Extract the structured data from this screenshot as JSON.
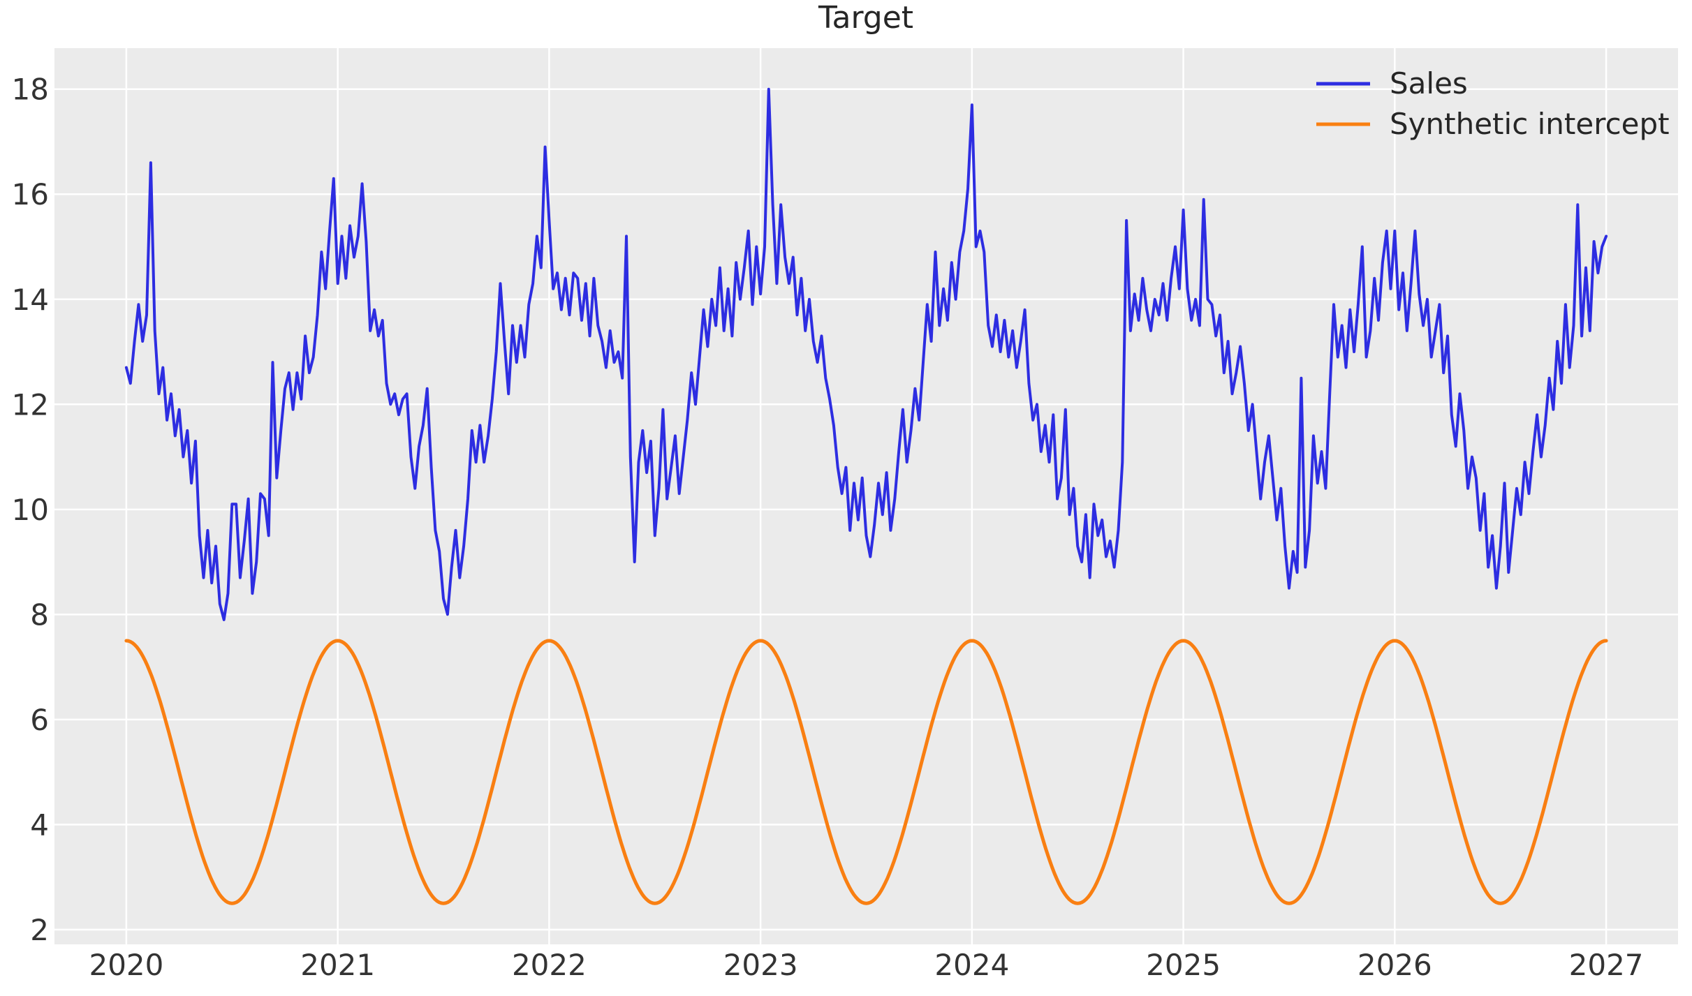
{
  "figure": {
    "title": "Target",
    "background_color": "#ffffff",
    "panel_color": "#ebebeb",
    "grid_color": "#ffffff",
    "tick_color": "#333333",
    "title_color": "#262626"
  },
  "legend": {
    "position": "upper right",
    "frame": false
  },
  "chart_data": {
    "type": "line",
    "title": "Target",
    "xlabel": "",
    "ylabel": "",
    "grid": true,
    "legend_position": "upper right",
    "xlim": [
      2019.66,
      2027.34
    ],
    "ylim": [
      1.72,
      18.78
    ],
    "x_ticks": [
      2020,
      2021,
      2022,
      2023,
      2024,
      2025,
      2026,
      2027
    ],
    "y_ticks": [
      2,
      4,
      6,
      8,
      10,
      12,
      14,
      16,
      18
    ],
    "series": [
      {
        "name": "Sales",
        "color": "#2d2de1",
        "line_width": 4,
        "sampling": "weekly",
        "x_start": 2020.0,
        "x_step": 0.019230769,
        "values": [
          12.7,
          12.4,
          13.2,
          13.9,
          13.2,
          13.7,
          16.6,
          13.4,
          12.2,
          12.7,
          11.7,
          12.2,
          11.4,
          11.9,
          11.0,
          11.5,
          10.5,
          11.3,
          9.5,
          8.7,
          9.6,
          8.6,
          9.3,
          8.2,
          7.9,
          8.4,
          10.1,
          10.1,
          8.7,
          9.4,
          10.2,
          8.4,
          9.0,
          10.3,
          10.2,
          9.5,
          12.8,
          10.6,
          11.5,
          12.3,
          12.6,
          11.9,
          12.6,
          12.1,
          13.3,
          12.6,
          12.9,
          13.7,
          14.9,
          14.2,
          15.3,
          16.3,
          14.3,
          15.2,
          14.4,
          15.4,
          14.8,
          15.2,
          16.2,
          15.1,
          13.4,
          13.8,
          13.3,
          13.6,
          12.4,
          12.0,
          12.2,
          11.8,
          12.1,
          12.2,
          11.0,
          10.4,
          11.2,
          11.6,
          12.3,
          10.8,
          9.6,
          9.2,
          8.3,
          8.0,
          8.9,
          9.6,
          8.7,
          9.3,
          10.2,
          11.5,
          10.9,
          11.6,
          10.9,
          11.4,
          12.1,
          13.0,
          14.3,
          13.2,
          12.2,
          13.5,
          12.8,
          13.5,
          12.9,
          13.9,
          14.3,
          15.2,
          14.6,
          16.9,
          15.5,
          14.2,
          14.5,
          13.8,
          14.4,
          13.7,
          14.5,
          14.4,
          13.6,
          14.3,
          13.3,
          14.4,
          13.5,
          13.2,
          12.7,
          13.4,
          12.8,
          13.0,
          12.5,
          15.2,
          11.0,
          9.0,
          10.9,
          11.5,
          10.7,
          11.3,
          9.5,
          10.4,
          11.9,
          10.2,
          10.8,
          11.4,
          10.3,
          11.0,
          11.7,
          12.6,
          12.0,
          12.9,
          13.8,
          13.1,
          14.0,
          13.5,
          14.6,
          13.4,
          14.2,
          13.3,
          14.7,
          14.0,
          14.6,
          15.3,
          13.9,
          15.0,
          14.1,
          15.0,
          18.0,
          15.8,
          14.3,
          15.8,
          14.8,
          14.3,
          14.8,
          13.7,
          14.4,
          13.4,
          14.0,
          13.2,
          12.8,
          13.3,
          12.5,
          12.1,
          11.6,
          10.8,
          10.3,
          10.8,
          9.6,
          10.5,
          9.8,
          10.6,
          9.5,
          9.1,
          9.7,
          10.5,
          9.9,
          10.7,
          9.6,
          10.2,
          11.1,
          11.9,
          10.9,
          11.5,
          12.3,
          11.7,
          12.8,
          13.9,
          13.2,
          14.9,
          13.5,
          14.2,
          13.6,
          14.7,
          14.0,
          14.9,
          15.3,
          16.1,
          17.7,
          15.0,
          15.3,
          14.9,
          13.5,
          13.1,
          13.7,
          13.0,
          13.6,
          12.9,
          13.4,
          12.7,
          13.2,
          13.8,
          12.4,
          11.7,
          12.0,
          11.1,
          11.6,
          10.9,
          11.8,
          10.2,
          10.6,
          11.9,
          9.9,
          10.4,
          9.3,
          9.0,
          9.9,
          8.7,
          10.1,
          9.5,
          9.8,
          9.1,
          9.4,
          8.9,
          9.6,
          10.9,
          15.5,
          13.4,
          14.1,
          13.6,
          14.4,
          13.8,
          13.4,
          14.0,
          13.7,
          14.3,
          13.6,
          14.4,
          15.0,
          14.2,
          15.7,
          14.2,
          13.6,
          14.0,
          13.5,
          15.9,
          14.0,
          13.9,
          13.3,
          13.7,
          12.6,
          13.2,
          12.2,
          12.6,
          13.1,
          12.4,
          11.5,
          12.0,
          11.1,
          10.2,
          10.9,
          11.4,
          10.6,
          9.8,
          10.4,
          9.3,
          8.5,
          9.2,
          8.8,
          12.5,
          8.9,
          9.6,
          11.4,
          10.5,
          11.1,
          10.4,
          12.2,
          13.9,
          12.9,
          13.5,
          12.7,
          13.8,
          13.0,
          13.9,
          15.0,
          12.9,
          13.4,
          14.4,
          13.6,
          14.7,
          15.3,
          14.2,
          15.3,
          13.8,
          14.5,
          13.4,
          14.3,
          15.3,
          14.1,
          13.5,
          14.0,
          12.9,
          13.4,
          13.9,
          12.6,
          13.3,
          11.8,
          11.2,
          12.2,
          11.5,
          10.4,
          11.0,
          10.6,
          9.6,
          10.3,
          8.9,
          9.5,
          8.5,
          9.3,
          10.5,
          8.8,
          9.6,
          10.4,
          9.9,
          10.9,
          10.3,
          11.1,
          11.8,
          11.0,
          11.6,
          12.5,
          11.9,
          13.2,
          12.4,
          13.9,
          12.7,
          13.5,
          15.8,
          13.3,
          14.6,
          13.4,
          15.1,
          14.5,
          15.0,
          15.2
        ]
      },
      {
        "name": "Synthetic intercept",
        "color": "#f97f12",
        "line_width": 5,
        "function": "cosine",
        "base": 5.0,
        "amplitude": 2.5,
        "period_years": 1.0,
        "peak_at": 2020.0,
        "x_range": [
          2020.0,
          2027.0
        ],
        "min": 2.5,
        "max": 7.5
      }
    ]
  }
}
